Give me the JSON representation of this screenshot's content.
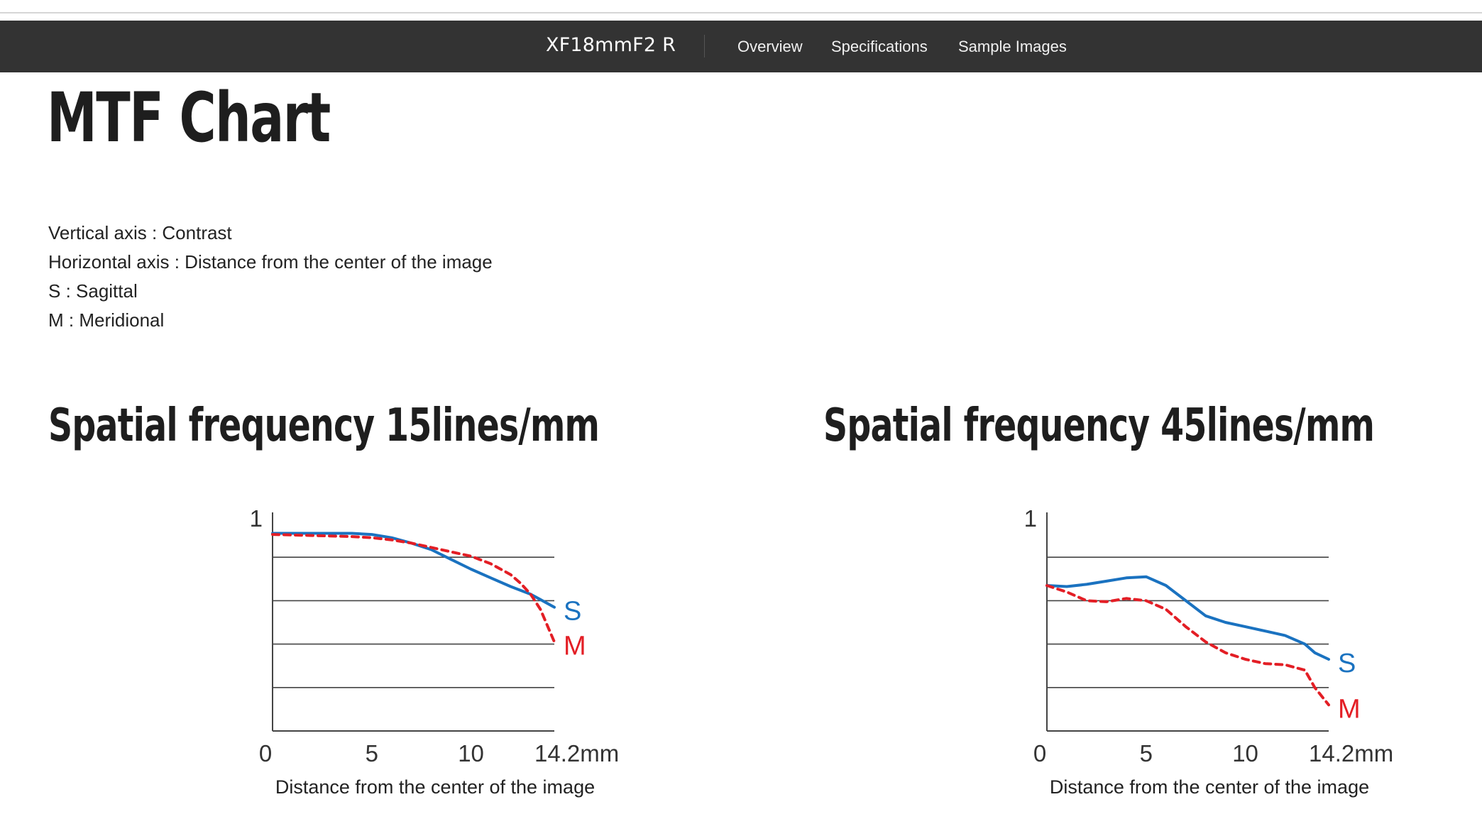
{
  "nav": {
    "product": "XF18mmF2 R",
    "links": [
      "Overview",
      "Specifications",
      "Sample Images"
    ]
  },
  "page": {
    "title": "MTF Chart",
    "legend": [
      "Vertical axis : Contrast",
      "Horizontal axis : Distance from the center of the image",
      "S : Sagittal",
      "M : Meridional"
    ]
  },
  "colors": {
    "sagittal": "#1a72c0",
    "meridional": "#e31e25",
    "nav_bg": "#333333"
  },
  "chart_data": [
    {
      "type": "line",
      "title": "Spatial frequency 15lines/mm",
      "xlabel": "Distance from the center of the image",
      "x_ticks": [
        "0",
        "5",
        "10",
        "14.2mm"
      ],
      "y_ticks": [
        "0",
        "1"
      ],
      "xlim": [
        0,
        14.2
      ],
      "ylim": [
        0,
        1
      ],
      "gridlines_y": [
        0.2,
        0.4,
        0.6,
        0.8
      ],
      "series": [
        {
          "name": "S",
          "style": "solid",
          "x": [
            0,
            2,
            4,
            5,
            6,
            7,
            8,
            9,
            10,
            11,
            12,
            13,
            14.2
          ],
          "y": [
            0.91,
            0.91,
            0.91,
            0.905,
            0.89,
            0.865,
            0.835,
            0.79,
            0.745,
            0.705,
            0.665,
            0.63,
            0.57
          ]
        },
        {
          "name": "M",
          "style": "dashed",
          "x": [
            0,
            2,
            4,
            5,
            6,
            7,
            8,
            9,
            10,
            11,
            12,
            12.5,
            13,
            13.5,
            14.2
          ],
          "y": [
            0.905,
            0.9,
            0.895,
            0.89,
            0.88,
            0.865,
            0.845,
            0.825,
            0.805,
            0.77,
            0.72,
            0.68,
            0.63,
            0.56,
            0.41
          ]
        }
      ]
    },
    {
      "type": "line",
      "title": "Spatial frequency 45lines/mm",
      "xlabel": "Distance from the center of the image",
      "x_ticks": [
        "0",
        "5",
        "10",
        "14.2mm"
      ],
      "y_ticks": [
        "0",
        "1"
      ],
      "xlim": [
        0,
        14.2
      ],
      "ylim": [
        0,
        1
      ],
      "gridlines_y": [
        0.2,
        0.4,
        0.6,
        0.8
      ],
      "series": [
        {
          "name": "S",
          "style": "solid",
          "x": [
            0,
            1,
            2,
            3,
            4,
            5,
            6,
            7,
            8,
            9,
            10,
            11,
            12,
            13,
            13.5,
            14.2
          ],
          "y": [
            0.67,
            0.665,
            0.675,
            0.69,
            0.705,
            0.71,
            0.67,
            0.6,
            0.53,
            0.5,
            0.48,
            0.46,
            0.44,
            0.4,
            0.36,
            0.33
          ]
        },
        {
          "name": "M",
          "style": "dashed",
          "x": [
            0,
            1,
            2,
            3,
            4,
            5,
            6,
            7,
            8,
            9,
            10,
            11,
            12,
            13,
            13.5,
            14.2
          ],
          "y": [
            0.67,
            0.64,
            0.6,
            0.595,
            0.61,
            0.6,
            0.56,
            0.48,
            0.41,
            0.36,
            0.33,
            0.31,
            0.305,
            0.28,
            0.2,
            0.12
          ]
        }
      ]
    }
  ]
}
